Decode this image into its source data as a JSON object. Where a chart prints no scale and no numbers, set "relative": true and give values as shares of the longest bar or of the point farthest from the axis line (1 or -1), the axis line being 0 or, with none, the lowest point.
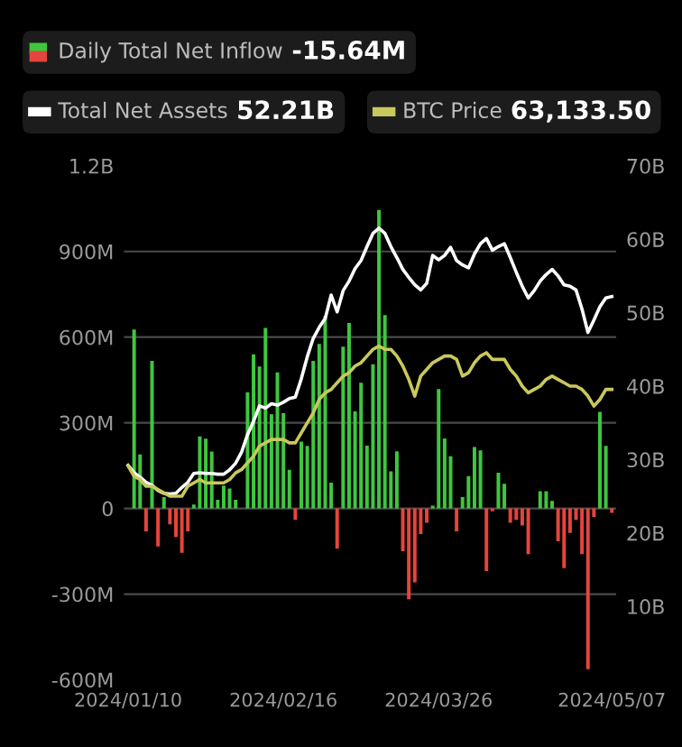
{
  "chart_data": [
    {
      "type": "bar",
      "legend": "top",
      "grid": "y",
      "categories": [
        "2024/01/10",
        null,
        null,
        null,
        null,
        null,
        null,
        null,
        null,
        null,
        null,
        null,
        null,
        null,
        null,
        null,
        null,
        null,
        null,
        null,
        null,
        null,
        null,
        null,
        null,
        null,
        "2024/02/16",
        null,
        null,
        null,
        null,
        null,
        null,
        null,
        null,
        null,
        null,
        null,
        null,
        null,
        null,
        null,
        null,
        null,
        null,
        null,
        null,
        null,
        null,
        null,
        null,
        null,
        "2024/03/26",
        null,
        null,
        null,
        null,
        null,
        null,
        null,
        null,
        null,
        null,
        null,
        null,
        null,
        null,
        null,
        null,
        null,
        null,
        null,
        null,
        null,
        null,
        null,
        null,
        null,
        null,
        null,
        null,
        "2024/05/07"
      ],
      "ylim": [
        -600000000,
        1200000000
      ],
      "yticks": [
        {
          "value": -600000000,
          "label": "-600M"
        },
        {
          "value": -300000000,
          "label": "-300M"
        },
        {
          "value": 0,
          "label": "0"
        },
        {
          "value": 300000000,
          "label": "300M"
        },
        {
          "value": 600000000,
          "label": "600M"
        },
        {
          "value": 900000000,
          "label": "900M"
        },
        {
          "value": 1200000000,
          "label": "1.2B"
        }
      ],
      "y2lim": [
        0,
        70
      ],
      "y2ticks": [
        {
          "value": 10,
          "label": "10B"
        },
        {
          "value": 20,
          "label": "20B"
        },
        {
          "value": 30,
          "label": "30B"
        },
        {
          "value": 40,
          "label": "40B"
        },
        {
          "value": 50,
          "label": "50B"
        },
        {
          "value": 60,
          "label": "60B"
        },
        {
          "value": 70,
          "label": "70B"
        }
      ],
      "annotations": [
        "-15.64M",
        "52.21B"
      ],
      "series": [
        {
          "name": "Daily Total Net Inflow",
          "type": "bar",
          "values": [
            null,
            627000000,
            189000000,
            -80000000,
            517000000,
            -133000000,
            40000000,
            -56000000,
            -100000000,
            -155000000,
            -80000000,
            14000000,
            252000000,
            244000000,
            199000000,
            30000000,
            80000000,
            70000000,
            30000000,
            null,
            407000000,
            540000000,
            497000000,
            632000000,
            330000000,
            477000000,
            334000000,
            135000000,
            -40000000,
            234000000,
            219000000,
            517000000,
            576000000,
            675000000,
            90000000,
            -140000000,
            567000000,
            650000000,
            340000000,
            440000000,
            220000000,
            505000000,
            1045000000,
            677000000,
            130000000,
            200000000,
            -150000000,
            -318000000,
            -259000000,
            -90000000,
            -50000000,
            10000000,
            418000000,
            245000000,
            183000000,
            -80000000,
            40000000,
            113000000,
            215000000,
            203000000,
            -219000000,
            -10000000,
            125000000,
            86000000,
            -50000000,
            -40000000,
            -60000000,
            -160000000,
            null,
            60000000,
            60000000,
            26000000,
            -115000000,
            -209000000,
            -86000000,
            -40000000,
            -160000000,
            -563000000,
            -30000000,
            338000000,
            219000000,
            -15640000
          ],
          "colors": [
            "#3fc63f",
            "#3fc63f",
            "#3fc63f",
            "#e5453b",
            "#3fc63f",
            "#e5453b",
            "#3fc63f",
            "#e5453b",
            "#e5453b",
            "#e5453b",
            "#e5453b",
            "#3fc63f",
            "#3fc63f",
            "#3fc63f",
            "#3fc63f",
            "#3fc63f",
            "#3fc63f",
            "#3fc63f",
            "#3fc63f",
            "#3fc63f",
            "#3fc63f",
            "#3fc63f",
            "#3fc63f",
            "#3fc63f",
            "#3fc63f",
            "#3fc63f",
            "#3fc63f",
            "#3fc63f",
            "#e5453b",
            "#3fc63f",
            "#3fc63f",
            "#3fc63f",
            "#3fc63f",
            "#3fc63f",
            "#3fc63f",
            "#e5453b",
            "#3fc63f",
            "#3fc63f",
            "#3fc63f",
            "#3fc63f",
            "#3fc63f",
            "#3fc63f",
            "#3fc63f",
            "#3fc63f",
            "#3fc63f",
            "#3fc63f",
            "#e5453b",
            "#e5453b",
            "#e5453b",
            "#e5453b",
            "#e5453b",
            "#3fc63f",
            "#3fc63f",
            "#3fc63f",
            "#3fc63f",
            "#e5453b",
            "#3fc63f",
            "#3fc63f",
            "#3fc63f",
            "#3fc63f",
            "#e5453b",
            "#e5453b",
            "#3fc63f",
            "#3fc63f",
            "#e5453b",
            "#e5453b",
            "#e5453b",
            "#e5453b",
            "#3fc63f",
            "#3fc63f",
            "#3fc63f",
            "#3fc63f",
            "#e5453b",
            "#e5453b",
            "#e5453b",
            "#e5453b",
            "#e5453b",
            "#e5453b",
            "#e5453b",
            "#3fc63f",
            "#3fc63f",
            "#e5453b"
          ]
        },
        {
          "name": "Total Net Assets",
          "type": "line",
          "axis": "y2",
          "color": "#ffffff",
          "values": [
            29.2,
            28.2,
            27.6,
            26.9,
            26.5,
            25.8,
            25.4,
            25.3,
            25.4,
            26.2,
            26.9,
            28.1,
            28.2,
            28.1,
            28.1,
            28.0,
            28.0,
            28.6,
            29.5,
            31.0,
            33.4,
            35.2,
            37.3,
            37.0,
            37.6,
            37.4,
            37.8,
            38.3,
            38.5,
            41.0,
            44.0,
            46.5,
            48.0,
            49.2,
            52.4,
            50.1,
            53.0,
            54.3,
            56.0,
            57.1,
            59.0,
            60.8,
            61.5,
            60.8,
            59.0,
            57.5,
            55.9,
            54.8,
            53.8,
            53.1,
            54.0,
            57.8,
            57.2,
            57.8,
            58.9,
            57.1,
            56.5,
            56.1,
            58.0,
            59.4,
            60.1,
            58.5,
            59.0,
            59.4,
            57.5,
            55.5,
            53.6,
            52.0,
            53.0,
            54.3,
            55.2,
            55.9,
            55.0,
            53.8,
            53.6,
            53.1,
            50.5,
            47.3,
            49.0,
            50.8,
            52.0,
            52.21
          ]
        }
      ]
    },
    {
      "type": "line",
      "relative": true,
      "legend": "top",
      "tick_labels": false,
      "categories": [
        "2024/01/10",
        null,
        null,
        null,
        null,
        null,
        null,
        null,
        null,
        null,
        null,
        null,
        null,
        null,
        null,
        null,
        null,
        null,
        null,
        null,
        null,
        null,
        null,
        null,
        null,
        null,
        "2024/02/16",
        null,
        null,
        null,
        null,
        null,
        null,
        null,
        null,
        null,
        null,
        null,
        null,
        null,
        null,
        null,
        null,
        null,
        null,
        null,
        null,
        null,
        null,
        null,
        null,
        null,
        "2024/03/26",
        null,
        null,
        null,
        null,
        null,
        null,
        null,
        null,
        null,
        null,
        null,
        null,
        null,
        null,
        null,
        null,
        null,
        null,
        null,
        null,
        null,
        null,
        null,
        null,
        null,
        null,
        null,
        null,
        "2024/05/07"
      ],
      "annotations": [
        "63,133.50"
      ],
      "series": [
        {
          "name": "BTC Price",
          "color": "#c9c85c",
          "values": [
            0.64,
            0.61,
            0.6,
            0.58,
            0.58,
            0.57,
            0.56,
            0.55,
            0.55,
            0.55,
            0.58,
            0.59,
            0.6,
            0.59,
            0.59,
            0.59,
            0.59,
            0.6,
            0.62,
            0.63,
            0.65,
            0.67,
            0.7,
            0.71,
            0.72,
            0.72,
            0.72,
            0.71,
            0.71,
            0.74,
            0.77,
            0.8,
            0.84,
            0.86,
            0.87,
            0.89,
            0.91,
            0.92,
            0.94,
            0.95,
            0.97,
            0.99,
            1,
            0.99,
            0.99,
            0.97,
            0.94,
            0.9,
            0.85,
            0.91,
            0.93,
            0.95,
            0.96,
            0.97,
            0.97,
            0.96,
            0.91,
            0.92,
            0.95,
            0.97,
            0.98,
            0.96,
            0.96,
            0.96,
            0.93,
            0.91,
            0.88,
            0.86,
            0.87,
            0.88,
            0.9,
            0.91,
            0.9,
            0.89,
            0.88,
            0.88,
            0.87,
            0.85,
            0.82,
            0.84,
            0.87,
            0.87
          ]
        }
      ]
    }
  ]
}
